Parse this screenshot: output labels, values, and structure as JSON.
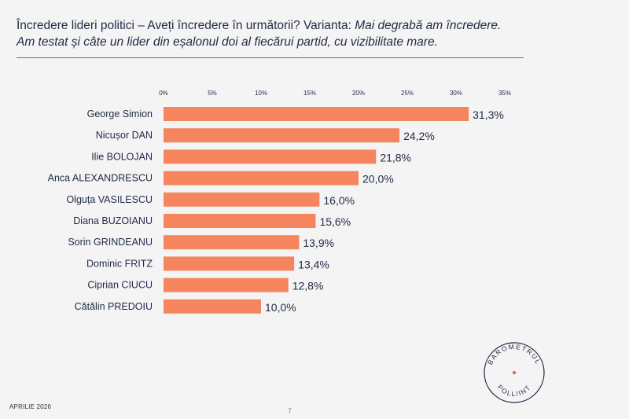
{
  "header": {
    "title_prefix": "Încredere lideri politici – Aveți încredere în următorii? Varianta: ",
    "title_italic": "Mai degrabă am încredere.",
    "subtitle": "Am testat și câte un lider din eșalonul doi al fiecărui partid, cu vizibilitate mare."
  },
  "chart_data": {
    "type": "bar",
    "orientation": "horizontal",
    "title": "Încredere lideri politici – Aveți încredere în următorii? Varianta: Mai degrabă am încredere.",
    "categories": [
      "George Simion",
      "Nicușor DAN",
      "Ilie BOLOJAN",
      "Anca ALEXANDRESCU",
      "Olguța VASILESCU",
      "Diana BUZOIANU",
      "Sorin GRINDEANU",
      "Dominic FRITZ",
      "Ciprian CIUCU",
      "Cătălin PREDOIU"
    ],
    "values": [
      31.3,
      24.2,
      21.8,
      20.0,
      16.0,
      15.6,
      13.9,
      13.4,
      12.8,
      10.0
    ],
    "value_labels": [
      "31,3%",
      "24,2%",
      "21,8%",
      "20,0%",
      "16,0%",
      "15,6%",
      "13,9%",
      "13,4%",
      "12,8%",
      "10,0%"
    ],
    "ticks": [
      0,
      5,
      10,
      15,
      20,
      25,
      30,
      35
    ],
    "tick_labels": [
      "0%",
      "5%",
      "10%",
      "15%",
      "20%",
      "25%",
      "30%",
      "35%"
    ],
    "xlim": [
      0,
      35
    ],
    "xaxis_position": "top",
    "grid": false,
    "bar_color": "#f4855e",
    "xlabel": "",
    "ylabel": ""
  },
  "footer": {
    "date": "APRILIE 2026",
    "page": "7"
  },
  "logo": {
    "top_text": "BAROMETRUL",
    "bottom_text": "POLL/INT",
    "dot_color": "#e8583a"
  }
}
